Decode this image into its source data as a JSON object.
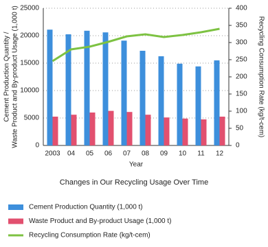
{
  "chart_data": {
    "type": "bar_line",
    "title": "Changes in Our Recycling Usage Over Time",
    "xlabel": "Year",
    "ylabel": [
      "Cement Production Quantity /",
      "Waste Product and By-product Usage (1,000 t)"
    ],
    "y2label": "Recycling Consumption Rate (kg/t-cem)",
    "categories": [
      "2003",
      "04",
      "05",
      "06",
      "07",
      "08",
      "09",
      "10",
      "11",
      "12"
    ],
    "series": [
      {
        "name": "Cement Production Quantity (1,000 t)",
        "color": "#3d8fdc",
        "type": "bar",
        "values": [
          21100,
          20250,
          20900,
          20600,
          19100,
          17250,
          16250,
          14900,
          14400,
          15500
        ]
      },
      {
        "name": "Waste Product and By-product Usage (1,000 t)",
        "color": "#e2506f",
        "type": "bar",
        "values": [
          5250,
          5600,
          6000,
          6300,
          6100,
          5600,
          5100,
          4900,
          4750,
          5250
        ]
      },
      {
        "name": "Recycling Consumption Rate (kg/t-cem)",
        "color": "#7dc242",
        "type": "line",
        "axis": "y2",
        "values": [
          246,
          280,
          288,
          302,
          318,
          324,
          316,
          322,
          330,
          340
        ]
      }
    ],
    "ylim": [
      0,
      25000
    ],
    "yticks": [
      0,
      5000,
      10000,
      15000,
      20000,
      25000
    ],
    "y2lim": [
      0,
      400
    ],
    "y2ticks": [
      0,
      50,
      100,
      150,
      200,
      250,
      300,
      350,
      400
    ],
    "grid": true
  }
}
